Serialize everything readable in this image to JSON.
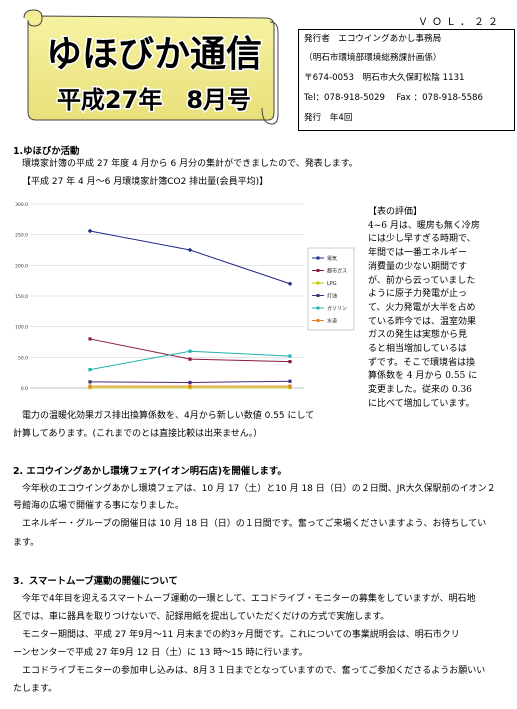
{
  "header": {
    "vol": "ＶＯＬ．２２",
    "title": "ゆほびか通信",
    "subtitle": "平成27年　8月号"
  },
  "publisher": {
    "line1": "発行者　エコウイングあかし事務局",
    "line2": "（明石市環境部環境総務課計画係）",
    "line3": "〒674-0053　明石市大久保町松陰 1131",
    "line4": "Tel：078-918-5029　 Fax ：078-918-5586",
    "line5": "発行　年4回"
  },
  "section1": {
    "heading": "1.ゆほびか活動",
    "intro": "環境家計簿の平成 27 年度 4 月から 6 月分の集計ができましたので、発表します。",
    "chart_caption": "【平成 27 年 4 月～6 月環境家計簿CO2 排出量(会員平均)】",
    "eval_lines": [
      "【表の評価】",
      "4~6 月は、暖房も無く冷房",
      "には少し早すぎる時期で、",
      "年間では一番エネルギー",
      "消費量の少ない期間です",
      "が、前から云っていました",
      "ように原子力発電が止っ",
      "て、火力発電が大半を占め",
      "ている昨今では、温室効果",
      "ガスの発生は実態から見",
      "ると相当増加しているは",
      "ずです。そこで環境省は換",
      "算係数を 4 月から 0.55 に",
      "変更ました。従来の 0.36",
      "に比べて増加しています。"
    ],
    "note_line1": "電力の温暖化効果ガス排出換算係数を、4月から新しい数値 0.55 にして",
    "note_line2": "計算してあります。(これまでのとは直接比較は出来ません。）"
  },
  "chart_data": {
    "type": "line",
    "categories": [
      "4月",
      "5月",
      "6月"
    ],
    "ylim": [
      0,
      300
    ],
    "yticks": [
      "0.0",
      "50.0",
      "100.0",
      "150.0",
      "200.0",
      "250.0",
      "300.0"
    ],
    "legend_position": "right",
    "grid": true,
    "series": [
      {
        "name": "電気",
        "color": "#1f2a8a",
        "marker": "diamond",
        "values": [
          256,
          225,
          170
        ]
      },
      {
        "name": "都市ガス",
        "color": "#8b1a3f",
        "marker": "square",
        "values": [
          80,
          47,
          43
        ]
      },
      {
        "name": "LPG",
        "color": "#c8c400",
        "marker": "triangle",
        "values": [
          0.5,
          0.5,
          0.5
        ]
      },
      {
        "name": "灯油",
        "color": "#4a2a7a",
        "marker": "x",
        "values": [
          10,
          9,
          11
        ]
      },
      {
        "name": "ガソリン",
        "color": "#20b0b0",
        "marker": "star",
        "values": [
          30,
          60,
          52
        ]
      },
      {
        "name": "水道",
        "color": "#e08020",
        "marker": "circle",
        "values": [
          3,
          3,
          3
        ]
      }
    ]
  },
  "section2": {
    "heading": "2. エコウイングあかし環境フェア(イオン明石店)を開催します。",
    "line1": "今年秋のエコウイングあかし環境フェアは、10 月 17（土）と10 月 18 日（日）の２日間、JR大久保駅前のイオン２",
    "line2": "号館海の広場で開催する事になりました。",
    "line3": "エネルギー・グループの開催日は 10 月 18 日（日）の１日間です。奮ってご来場くださいますよう、お待ちしてい",
    "line4": "ます。"
  },
  "section3": {
    "heading": "3．スマートムーブ運動の開催について",
    "line1": "今年で4年目を迎えるスマートムーブ運動の一環として、エコドライブ・モニターの募集をしていますが、明石地",
    "line2": "区では、車に器具を取りつけないで、記録用紙を提出していただくだけの方式で実施します。",
    "line3": "モニター期間は、平成 27 年9月～11 月末までの約3ヶ月間です。これについての事業説明会は、明石市クリ",
    "line4": "ーンセンターで平成 27 年9月 12 日（土）に 13 時～15 時に行います。",
    "line5": "エコドライブモニターの参加申し込みは、8月３１日までとなっていますので、奮ってご参加くださるようお願いい",
    "line6": "たします。"
  }
}
